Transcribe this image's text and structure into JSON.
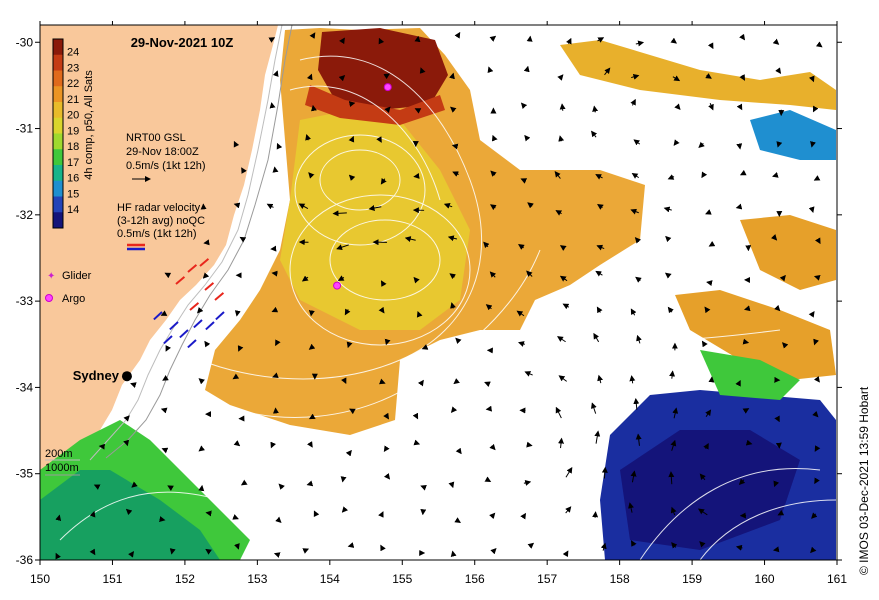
{
  "map": {
    "title": "29-Nov-2021 10Z",
    "credit": "© IMOS 03-Dec-2021 13:59 Hobart",
    "x_ticks": [
      "150",
      "151",
      "152",
      "153",
      "154",
      "155",
      "156",
      "157",
      "158",
      "159",
      "160",
      "161"
    ],
    "y_ticks": [
      "-30",
      "-31",
      "-32",
      "-33",
      "-34",
      "-35",
      "-36"
    ],
    "lon_range": [
      150,
      161
    ],
    "lat_range": [
      -36,
      -29.8
    ],
    "colors": {
      "land": "#f9c89b",
      "ocean_nodata": "#ffffff",
      "radar_red": "#e8261c",
      "radar_blue": "#1a1ac8",
      "glider": "#cc22cc",
      "argo": "#ff44ff"
    }
  },
  "colorbar": {
    "label": "4h comp, p50, All Sats",
    "ticks": [
      "24",
      "23",
      "22",
      "21",
      "20",
      "19",
      "18",
      "17",
      "16",
      "15",
      "14"
    ],
    "colors": [
      "#8b1a0a",
      "#c43b14",
      "#e06a1c",
      "#eb9423",
      "#e8bb2a",
      "#d9d52c",
      "#9fd92e",
      "#3fc83b",
      "#17b48a",
      "#1f8fd0",
      "#2343b8",
      "#14147a"
    ]
  },
  "legend": {
    "gsl_line1": "NRT00 GSL",
    "gsl_line2": "29-Nov 18:00Z",
    "gsl_line3": "0.5m/s (1kt 12h)",
    "hf_line1": "HF radar velocity",
    "hf_line2": "(3-12h avg) noQC",
    "hf_line3": "0.5m/s (1kt 12h)",
    "glider_label": "Glider",
    "argo_label": "Argo"
  },
  "places": {
    "city": "Sydney",
    "city_lon": 151.2,
    "city_lat": -33.87
  },
  "argo_floats": [
    {
      "lon": 154.8,
      "lat": -30.52
    },
    {
      "lon": 154.1,
      "lat": -32.82
    }
  ],
  "depth_labels": {
    "d200": "200m",
    "d1000": "1000m"
  }
}
